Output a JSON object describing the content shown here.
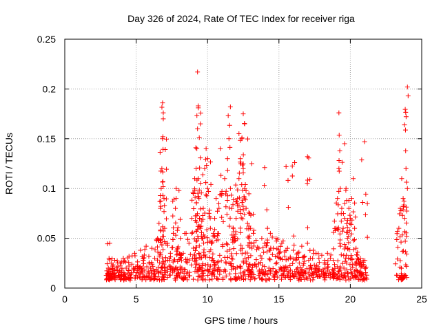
{
  "chart_data": {
    "type": "scatter",
    "title": "Day 326 of 2024, Rate Of TEC Index for receiver riga",
    "xlabel": "GPS time / hours",
    "ylabel": "ROTI / TECUs",
    "xlim": [
      0,
      25
    ],
    "ylim": [
      0,
      0.25
    ],
    "x_ticks": [
      0,
      5,
      10,
      15,
      20,
      25
    ],
    "y_ticks": [
      0,
      0.05,
      0.1,
      0.15,
      0.2,
      0.25
    ],
    "x_tick_labels": [
      "0",
      "5",
      "10",
      "15",
      "20",
      "25"
    ],
    "y_tick_labels": [
      "0",
      "0.05",
      "0.1",
      "0.15",
      "0.2",
      "0.25"
    ],
    "grid": true,
    "marker": "+",
    "color": "#ff0000",
    "series": [
      {
        "x": [
          3.05,
          3.1,
          3.15,
          3.2,
          3.25,
          3.35,
          3.5,
          3.7,
          3.9,
          4.1,
          4.3,
          4.5,
          4.7,
          4.9,
          5.1,
          5.3,
          5.5,
          5.7,
          5.9,
          6.1,
          6.3,
          6.5,
          6.6,
          6.7,
          6.75,
          6.8,
          6.85,
          6.9,
          6.95,
          7.0,
          7.2,
          7.4,
          7.6,
          7.75,
          7.8,
          7.9,
          8.1,
          8.3,
          8.5,
          8.7,
          8.9,
          9.0,
          9.1,
          9.2,
          9.25,
          9.3,
          9.35,
          9.4,
          9.45,
          9.5,
          9.6,
          9.7,
          9.8,
          9.9,
          10.0,
          10.1,
          10.2,
          10.3,
          10.4,
          10.5,
          10.6,
          10.8,
          11.0,
          11.2,
          11.4,
          11.5,
          11.6,
          11.7,
          11.8,
          11.9,
          12.0,
          12.1,
          12.2,
          12.3,
          12.4,
          12.5,
          12.6,
          12.7,
          12.8,
          12.9,
          13.0,
          13.2,
          13.4,
          13.6,
          13.8,
          14.0,
          14.2,
          14.4,
          14.6,
          14.8,
          15.0,
          15.2,
          15.4,
          15.6,
          15.8,
          16.0,
          16.2,
          16.4,
          16.6,
          16.8,
          17.0,
          17.2,
          17.4,
          17.6,
          17.8,
          18.0,
          18.2,
          18.4,
          18.6,
          18.8,
          19.0,
          19.1,
          19.2,
          19.3,
          19.4,
          19.5,
          19.6,
          19.7,
          19.8,
          19.9,
          20.0,
          20.1,
          20.2,
          20.3,
          20.4,
          20.5,
          20.6,
          20.7,
          20.8,
          20.9,
          21.0,
          23.4,
          23.5,
          23.6,
          23.7,
          23.8,
          23.9,
          24.0,
          3.1,
          3.3,
          3.5,
          3.8,
          4.0,
          4.4,
          4.8,
          5.2,
          5.6,
          6.0,
          6.4,
          6.8,
          7.3,
          7.7,
          8.2,
          8.6,
          9.2,
          9.6,
          10.2,
          10.7,
          11.3,
          11.8,
          12.3,
          12.8,
          13.3,
          13.8,
          14.3,
          14.8,
          15.3,
          15.8,
          16.3,
          16.8,
          17.3,
          17.8,
          18.3,
          18.8,
          19.3,
          19.8,
          20.3,
          20.8,
          23.5,
          23.8,
          6.85,
          6.9,
          9.3,
          9.35,
          9.5,
          11.6,
          12.5,
          12.6,
          19.2,
          19.6,
          21.0,
          24.0,
          24.05,
          16.1,
          17.0,
          14.0,
          15.5,
          10.0,
          10.9,
          12.2,
          13.1,
          8.0,
          7.8
        ],
        "y": [
          0.02,
          0.03,
          0.045,
          0.015,
          0.025,
          0.022,
          0.028,
          0.018,
          0.025,
          0.03,
          0.02,
          0.032,
          0.024,
          0.035,
          0.022,
          0.038,
          0.028,
          0.042,
          0.025,
          0.04,
          0.03,
          0.05,
          0.065,
          0.08,
          0.1,
          0.12,
          0.15,
          0.17,
          0.09,
          0.06,
          0.045,
          0.035,
          0.055,
          0.08,
          0.09,
          0.04,
          0.05,
          0.035,
          0.055,
          0.045,
          0.07,
          0.095,
          0.11,
          0.12,
          0.14,
          0.16,
          0.11,
          0.09,
          0.07,
          0.06,
          0.05,
          0.08,
          0.12,
          0.14,
          0.1,
          0.075,
          0.06,
          0.045,
          0.055,
          0.07,
          0.09,
          0.08,
          0.095,
          0.11,
          0.13,
          0.15,
          0.1,
          0.08,
          0.06,
          0.05,
          0.07,
          0.09,
          0.11,
          0.13,
          0.15,
          0.12,
          0.1,
          0.08,
          0.065,
          0.05,
          0.06,
          0.055,
          0.048,
          0.04,
          0.05,
          0.045,
          0.06,
          0.055,
          0.04,
          0.05,
          0.035,
          0.045,
          0.032,
          0.04,
          0.03,
          0.038,
          0.028,
          0.036,
          0.042,
          0.032,
          0.045,
          0.03,
          0.038,
          0.035,
          0.03,
          0.033,
          0.028,
          0.035,
          0.03,
          0.028,
          0.06,
          0.09,
          0.12,
          0.1,
          0.08,
          0.06,
          0.07,
          0.1,
          0.05,
          0.08,
          0.07,
          0.09,
          0.11,
          0.06,
          0.04,
          0.03,
          0.025,
          0.03,
          0.022,
          0.028,
          0.02,
          0.06,
          0.08,
          0.11,
          0.09,
          0.07,
          0.12,
          0.1,
          0.012,
          0.01,
          0.015,
          0.012,
          0.018,
          0.015,
          0.02,
          0.015,
          0.018,
          0.02,
          0.017,
          0.02,
          0.022,
          0.018,
          0.02,
          0.016,
          0.025,
          0.02,
          0.022,
          0.018,
          0.025,
          0.02,
          0.022,
          0.019,
          0.024,
          0.018,
          0.02,
          0.017,
          0.021,
          0.018,
          0.02,
          0.016,
          0.019,
          0.017,
          0.015,
          0.016,
          0.018,
          0.015,
          0.017,
          0.014,
          0.01,
          0.012,
          0.186,
          0.176,
          0.217,
          0.181,
          0.165,
          0.182,
          0.175,
          0.165,
          0.176,
          0.145,
          0.147,
          0.202,
          0.193,
          0.126,
          0.132,
          0.121,
          0.122,
          0.13,
          0.14,
          0.155,
          0.125,
          0.098,
          0.1
        ]
      }
    ]
  }
}
